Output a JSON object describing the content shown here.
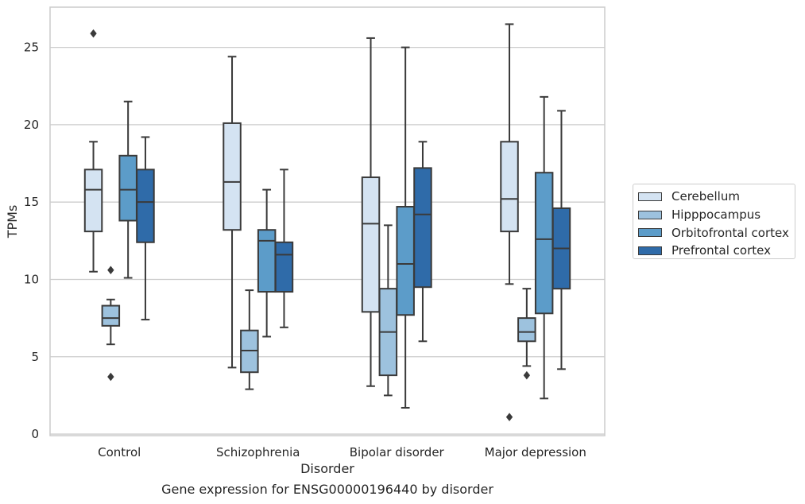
{
  "chart_data": {
    "type": "box",
    "title": "",
    "caption": "Gene expression for ENSG00000196440 by disorder",
    "xlabel": "Disorder",
    "ylabel": "TPMs",
    "ylim": [
      -0.1,
      27.6
    ],
    "yticks": [
      0,
      5,
      10,
      15,
      20,
      25
    ],
    "grid": true,
    "legend_position": "right",
    "categories": [
      "Control",
      "Schizophrenia",
      "Bipolar disorder",
      "Major depression"
    ],
    "series": [
      {
        "name": "Cerebellum",
        "color": "#d4e3f2",
        "boxes": [
          {
            "whislo": 10.5,
            "q1": 13.1,
            "med": 15.8,
            "q3": 17.1,
            "whishi": 18.9,
            "fliers": [
              25.9
            ]
          },
          {
            "whislo": 4.3,
            "q1": 13.2,
            "med": 16.3,
            "q3": 20.1,
            "whishi": 24.4,
            "fliers": []
          },
          {
            "whislo": 3.1,
            "q1": 7.9,
            "med": 13.6,
            "q3": 16.6,
            "whishi": 25.6,
            "fliers": []
          },
          {
            "whislo": 9.7,
            "q1": 13.1,
            "med": 15.2,
            "q3": 18.9,
            "whishi": 26.5,
            "fliers": [
              1.1
            ]
          }
        ]
      },
      {
        "name": "Hipppocampus",
        "color": "#9dc2de",
        "boxes": [
          {
            "whislo": 5.8,
            "q1": 7.0,
            "med": 7.5,
            "q3": 8.3,
            "whishi": 8.7,
            "fliers": [
              3.7,
              10.6
            ]
          },
          {
            "whislo": 2.9,
            "q1": 4.0,
            "med": 5.4,
            "q3": 6.7,
            "whishi": 9.3,
            "fliers": []
          },
          {
            "whislo": 2.5,
            "q1": 3.8,
            "med": 6.6,
            "q3": 9.4,
            "whishi": 13.5,
            "fliers": []
          },
          {
            "whislo": 4.4,
            "q1": 6.0,
            "med": 6.6,
            "q3": 7.5,
            "whishi": 9.4,
            "fliers": [
              3.8
            ]
          }
        ]
      },
      {
        "name": "Orbitofrontal cortex",
        "color": "#5c9cc9",
        "boxes": [
          {
            "whislo": 10.1,
            "q1": 13.8,
            "med": 15.8,
            "q3": 18.0,
            "whishi": 21.5,
            "fliers": []
          },
          {
            "whislo": 6.3,
            "q1": 9.2,
            "med": 12.5,
            "q3": 13.2,
            "whishi": 15.8,
            "fliers": []
          },
          {
            "whislo": 1.7,
            "q1": 7.7,
            "med": 11.0,
            "q3": 14.7,
            "whishi": 25.0,
            "fliers": []
          },
          {
            "whislo": 2.3,
            "q1": 7.8,
            "med": 12.6,
            "q3": 16.9,
            "whishi": 21.8,
            "fliers": []
          }
        ]
      },
      {
        "name": "Prefrontal cortex",
        "color": "#2f6ba9",
        "boxes": [
          {
            "whislo": 7.4,
            "q1": 12.4,
            "med": 15.0,
            "q3": 17.1,
            "whishi": 19.2,
            "fliers": []
          },
          {
            "whislo": 6.9,
            "q1": 9.2,
            "med": 11.6,
            "q3": 12.4,
            "whishi": 17.1,
            "fliers": []
          },
          {
            "whislo": 6.0,
            "q1": 9.5,
            "med": 14.2,
            "q3": 17.2,
            "whishi": 18.9,
            "fliers": []
          },
          {
            "whislo": 4.2,
            "q1": 9.4,
            "med": 12.0,
            "q3": 14.6,
            "whishi": 20.9,
            "fliers": []
          }
        ]
      }
    ]
  },
  "colors": {
    "grid": "#cccccc",
    "frame": "#cccccc",
    "box_edge": "#3a3a3a",
    "background": "#ffffff"
  }
}
